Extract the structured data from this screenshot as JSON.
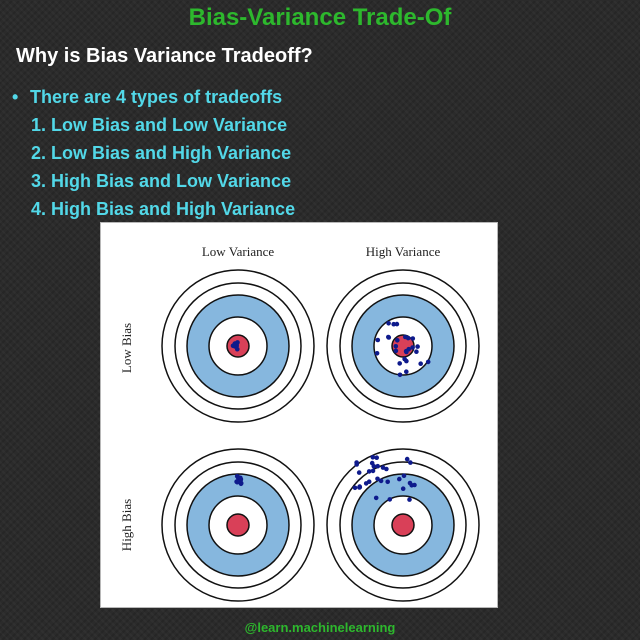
{
  "title": "Bias-Variance Trade-Of",
  "subtitle": "Why is Bias Variance Tradeoff?",
  "bullet": {
    "marker": "•",
    "text": "There are 4 types of tradeoffs"
  },
  "tradeoffs": [
    "1. Low Bias and Low Variance",
    "2. Low Bias and High Variance",
    "3. High Bias and Low Variance",
    "4. High Bias and High Variance"
  ],
  "diagram": {
    "column_labels": [
      "Low Variance",
      "High Variance"
    ],
    "row_labels": [
      "Low Bias",
      "High Bias"
    ],
    "colors": {
      "ring_blue": "#86b7de",
      "bullseye_red": "#d94058",
      "ring_line": "#111111",
      "dot": "#0e1a8c"
    }
  },
  "footer": "@learn.machinelearning"
}
